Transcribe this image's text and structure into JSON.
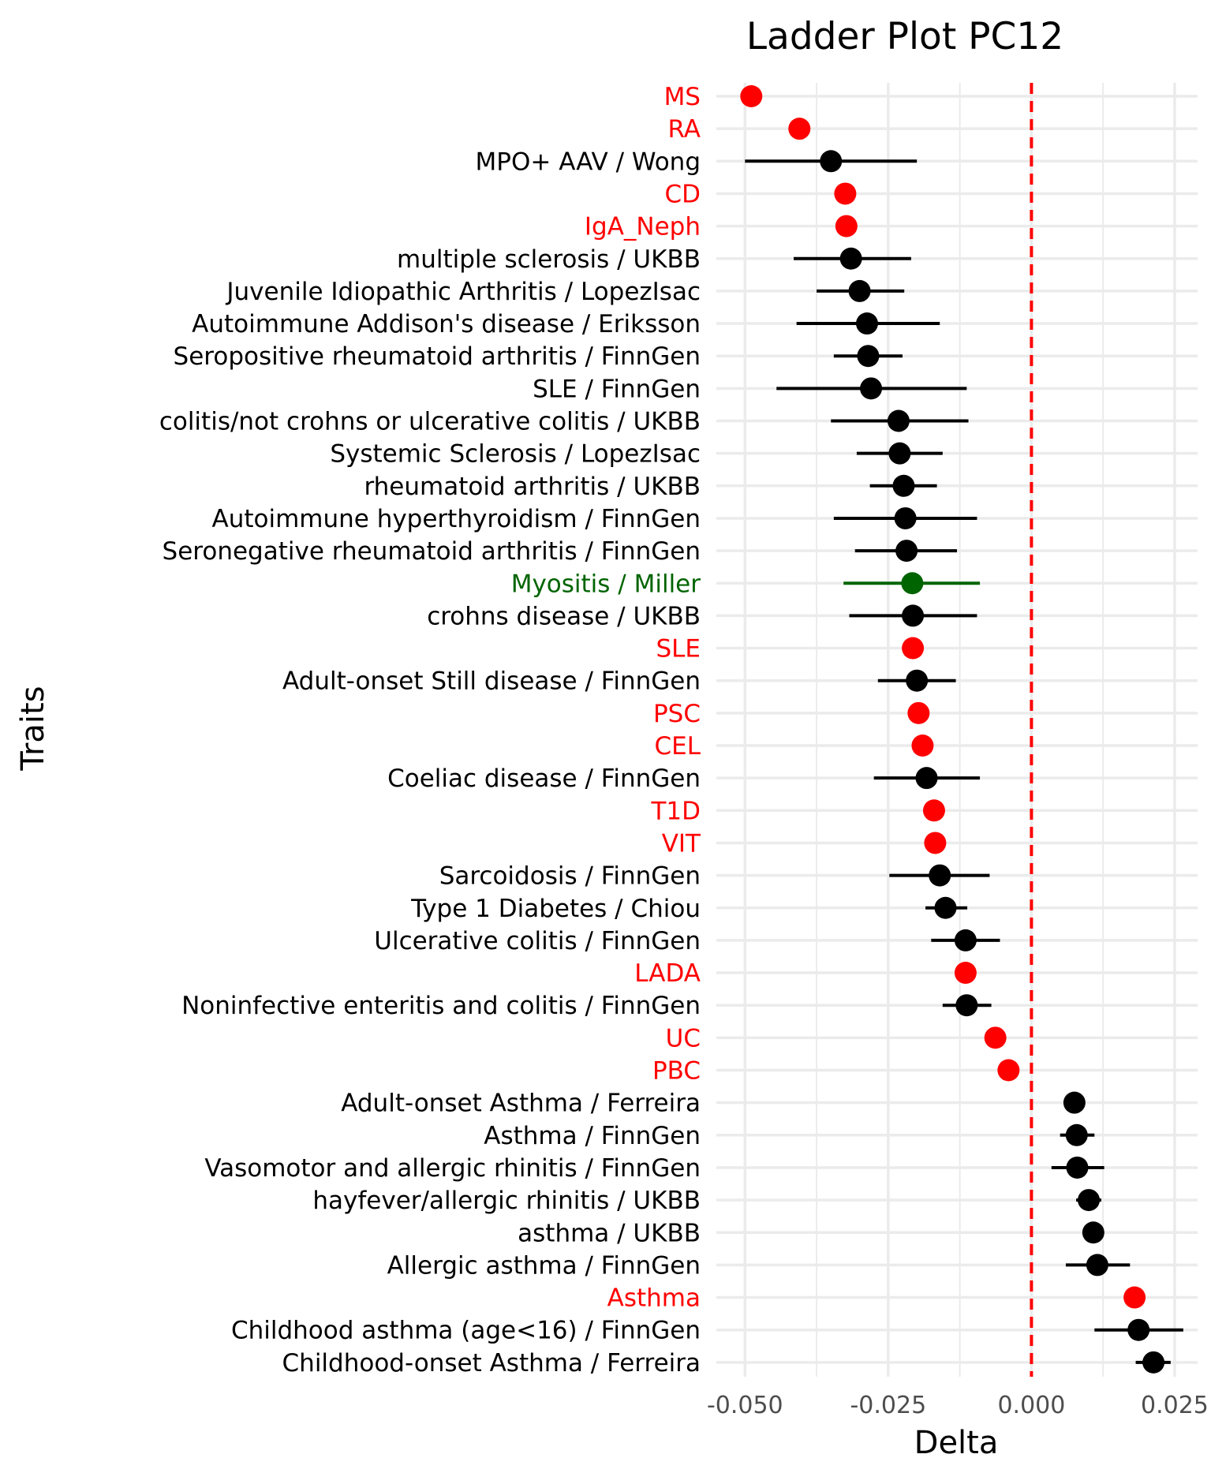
{
  "chart_data": {
    "type": "scatter",
    "title": "Ladder Plot PC12",
    "xlabel": "Delta",
    "ylabel": "Traits",
    "xlim": [
      -0.055,
      0.029
    ],
    "x_ticks": [
      -0.05,
      -0.025,
      0.0,
      0.025
    ],
    "x_tick_labels": [
      "-0.050",
      "-0.025",
      "0.000",
      "0.025"
    ],
    "reference_line": {
      "x": 0.0,
      "style": "dashed",
      "color": "#ff0000"
    },
    "grid": true,
    "colors": {
      "black": "#000000",
      "red": "#ff0000",
      "green": "#006400",
      "grid": "#ebebeb",
      "axis_text": "#4d4d4d"
    },
    "points": [
      {
        "label": "MS",
        "x": -0.0489,
        "lo": null,
        "hi": null,
        "color": "red"
      },
      {
        "label": "RA",
        "x": -0.0405,
        "lo": null,
        "hi": null,
        "color": "red"
      },
      {
        "label": "MPO+ AAV / Wong",
        "x": -0.035,
        "lo": -0.05,
        "hi": -0.02,
        "color": "black"
      },
      {
        "label": "CD",
        "x": -0.0325,
        "lo": null,
        "hi": null,
        "color": "red"
      },
      {
        "label": "IgA_Neph",
        "x": -0.0323,
        "lo": null,
        "hi": null,
        "color": "red"
      },
      {
        "label": "multiple sclerosis / UKBB",
        "x": -0.0315,
        "lo": -0.0415,
        "hi": -0.021,
        "color": "black"
      },
      {
        "label": "Juvenile Idiopathic Arthritis / LopezIsac",
        "x": -0.03,
        "lo": -0.0375,
        "hi": -0.0222,
        "color": "black"
      },
      {
        "label": "Autoimmune Addison's disease / Eriksson",
        "x": -0.0287,
        "lo": -0.041,
        "hi": -0.016,
        "color": "black"
      },
      {
        "label": "Seropositive rheumatoid arthritis / FinnGen",
        "x": -0.0285,
        "lo": -0.0345,
        "hi": -0.0225,
        "color": "black"
      },
      {
        "label": "SLE / FinnGen",
        "x": -0.028,
        "lo": -0.0445,
        "hi": -0.0113,
        "color": "black"
      },
      {
        "label": "colitis/not crohns or ulcerative colitis / UKBB",
        "x": -0.0232,
        "lo": -0.035,
        "hi": -0.011,
        "color": "black"
      },
      {
        "label": "Systemic Sclerosis / LopezIsac",
        "x": -0.023,
        "lo": -0.0305,
        "hi": -0.0155,
        "color": "black"
      },
      {
        "label": "rheumatoid arthritis / UKBB",
        "x": -0.0223,
        "lo": -0.0282,
        "hi": -0.0165,
        "color": "black"
      },
      {
        "label": "Autoimmune hyperthyroidism / FinnGen",
        "x": -0.022,
        "lo": -0.0345,
        "hi": -0.0095,
        "color": "black"
      },
      {
        "label": "Seronegative rheumatoid arthritis / FinnGen",
        "x": -0.0218,
        "lo": -0.0308,
        "hi": -0.013,
        "color": "black"
      },
      {
        "label": "Myositis / Miller",
        "x": -0.0208,
        "lo": -0.0328,
        "hi": -0.009,
        "color": "green"
      },
      {
        "label": "crohns disease / UKBB",
        "x": -0.0207,
        "lo": -0.0318,
        "hi": -0.0095,
        "color": "black"
      },
      {
        "label": "SLE",
        "x": -0.0207,
        "lo": null,
        "hi": null,
        "color": "red"
      },
      {
        "label": "Adult-onset Still disease / FinnGen",
        "x": -0.02,
        "lo": -0.0268,
        "hi": -0.0132,
        "color": "black"
      },
      {
        "label": "PSC",
        "x": -0.0197,
        "lo": null,
        "hi": null,
        "color": "red"
      },
      {
        "label": "CEL",
        "x": -0.019,
        "lo": null,
        "hi": null,
        "color": "red"
      },
      {
        "label": "Coeliac disease / FinnGen",
        "x": -0.0183,
        "lo": -0.0275,
        "hi": -0.009,
        "color": "black"
      },
      {
        "label": "T1D",
        "x": -0.017,
        "lo": null,
        "hi": null,
        "color": "red"
      },
      {
        "label": "VIT",
        "x": -0.0168,
        "lo": null,
        "hi": null,
        "color": "red"
      },
      {
        "label": "Sarcoidosis / FinnGen",
        "x": -0.016,
        "lo": -0.0248,
        "hi": -0.0073,
        "color": "black"
      },
      {
        "label": "Type 1 Diabetes / Chiou",
        "x": -0.015,
        "lo": -0.0185,
        "hi": -0.0112,
        "color": "black"
      },
      {
        "label": "Ulcerative colitis / FinnGen",
        "x": -0.0115,
        "lo": -0.0175,
        "hi": -0.0055,
        "color": "black"
      },
      {
        "label": "LADA",
        "x": -0.0115,
        "lo": null,
        "hi": null,
        "color": "red"
      },
      {
        "label": "Noninfective enteritis and colitis / FinnGen",
        "x": -0.0113,
        "lo": -0.0155,
        "hi": -0.007,
        "color": "black"
      },
      {
        "label": "UC",
        "x": -0.0063,
        "lo": null,
        "hi": null,
        "color": "red"
      },
      {
        "label": "PBC",
        "x": -0.004,
        "lo": null,
        "hi": null,
        "color": "red"
      },
      {
        "label": "Adult-onset Asthma / Ferreira",
        "x": 0.0075,
        "lo": 0.0062,
        "hi": 0.0088,
        "color": "black"
      },
      {
        "label": "Asthma / FinnGen",
        "x": 0.0079,
        "lo": 0.005,
        "hi": 0.011,
        "color": "black"
      },
      {
        "label": "Vasomotor and allergic rhinitis / FinnGen",
        "x": 0.008,
        "lo": 0.0035,
        "hi": 0.0127,
        "color": "black"
      },
      {
        "label": "hayfever/allergic rhinitis / UKBB",
        "x": 0.01,
        "lo": 0.0078,
        "hi": 0.0122,
        "color": "black"
      },
      {
        "label": "asthma / UKBB",
        "x": 0.0108,
        "lo": 0.0092,
        "hi": 0.0124,
        "color": "black"
      },
      {
        "label": "Allergic asthma / FinnGen",
        "x": 0.0115,
        "lo": 0.006,
        "hi": 0.0172,
        "color": "black"
      },
      {
        "label": "Asthma",
        "x": 0.018,
        "lo": null,
        "hi": null,
        "color": "red"
      },
      {
        "label": "Childhood asthma (age<16) / FinnGen",
        "x": 0.0187,
        "lo": 0.011,
        "hi": 0.0265,
        "color": "black"
      },
      {
        "label": "Childhood-onset Asthma / Ferreira",
        "x": 0.0213,
        "lo": 0.0182,
        "hi": 0.0243,
        "color": "black"
      }
    ]
  }
}
